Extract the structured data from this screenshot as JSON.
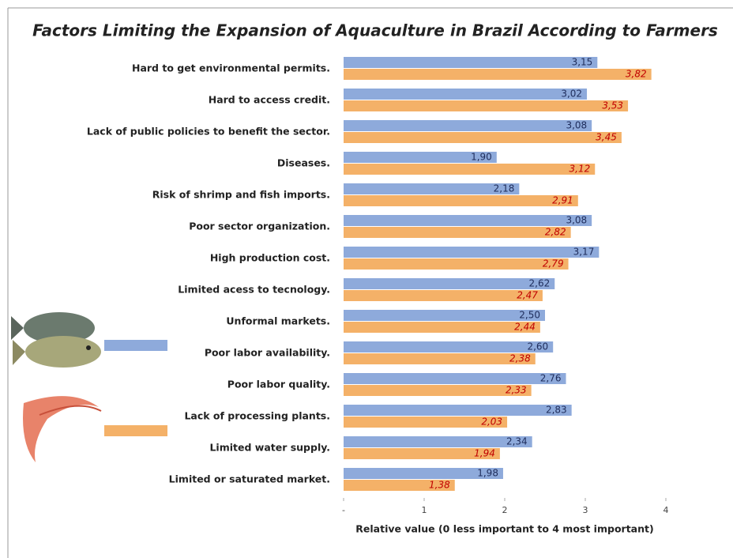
{
  "chart_data": {
    "type": "bar",
    "orientation": "horizontal",
    "title": "Factors Limiting the Expansion of Aquaculture in Brazil According to Farmers",
    "x_label": "Relative value (0 less important to 4 most important)",
    "categories": [
      "Hard to get environmental permits.",
      "Hard to access credit.",
      "Lack of public policies to benefit the sector.",
      "Diseases.",
      "Risk of shrimp and fish imports.",
      "Poor sector organization.",
      "High production cost.",
      "Limited acess to tecnology.",
      "Unformal markets.",
      "Poor labor availability.",
      "Poor labor quality.",
      "Lack of processing plants.",
      "Limited water supply.",
      "Limited or saturated market."
    ],
    "series": [
      {
        "color": "#8eaadb",
        "label_color": "#1f2d5c",
        "values": [
          3.15,
          3.02,
          3.08,
          1.9,
          2.18,
          3.08,
          3.17,
          2.62,
          2.5,
          2.6,
          2.76,
          2.83,
          2.34,
          1.98
        ],
        "value_labels": [
          "3,15",
          "3,02",
          "3,08",
          "1,90",
          "2,18",
          "3,08",
          "3,17",
          "2,62",
          "2,50",
          "2,60",
          "2,76",
          "2,83",
          "2,34",
          "1,98"
        ]
      },
      {
        "color": "#f4b168",
        "label_color": "#c00000",
        "values": [
          3.82,
          3.53,
          3.45,
          3.12,
          2.91,
          2.82,
          2.79,
          2.47,
          2.44,
          2.38,
          2.33,
          2.03,
          1.94,
          1.38
        ],
        "value_labels": [
          "3,82",
          "3,53",
          "3,45",
          "3,12",
          "2,91",
          "2,82",
          "2,79",
          "2,47",
          "2,44",
          "2,38",
          "2,33",
          "2,03",
          "1,94",
          "1,38"
        ]
      }
    ],
    "xlim": [
      0,
      4
    ],
    "xticks": [
      {
        "value": 0,
        "label": "-"
      },
      1,
      2,
      3,
      4
    ]
  }
}
